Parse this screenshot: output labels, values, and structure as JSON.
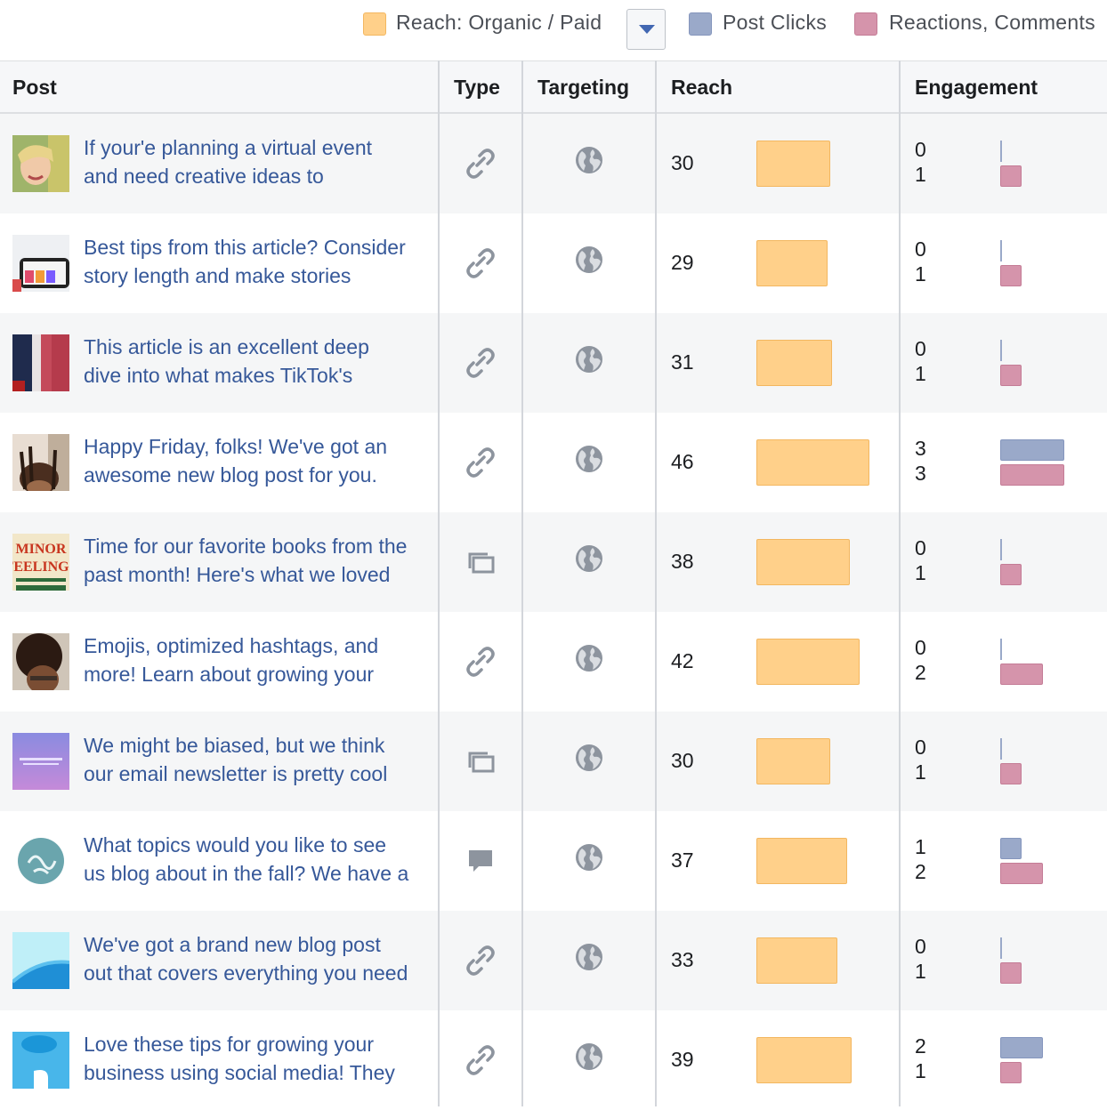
{
  "legend": {
    "reach_label": "Reach: Organic / Paid",
    "clicks_label": "Post Clicks",
    "reactions_label": "Reactions, Comments",
    "reach_color": "#ffd08a",
    "clicks_color": "#9aa9c9",
    "reactions_color": "#d594ab"
  },
  "table": {
    "headers": {
      "post": "Post",
      "type": "Type",
      "targeting": "Targeting",
      "reach": "Reach",
      "engagement": "Engagement"
    },
    "rows": [
      {
        "line1": "If your'e planning a virtual event",
        "line2": "and need creative ideas to",
        "type_icon": "link-icon",
        "targeting_icon": "globe-icon",
        "reach": "30",
        "clicks": "0",
        "reactions": "1",
        "thumb": "woman-smiling"
      },
      {
        "line1": "Best tips from this article? Consider",
        "line2": "story length and make stories",
        "type_icon": "link-icon",
        "targeting_icon": "globe-icon",
        "reach": "29",
        "clicks": "0",
        "reactions": "1",
        "thumb": "phone-stories"
      },
      {
        "line1": "This article is an excellent deep",
        "line2": "dive into what makes TikTok's",
        "type_icon": "link-icon",
        "targeting_icon": "globe-icon",
        "reach": "31",
        "clicks": "0",
        "reactions": "1",
        "thumb": "red-blue-abstract"
      },
      {
        "line1": "Happy Friday, folks! We've got an",
        "line2": "awesome new blog post for you.",
        "type_icon": "link-icon",
        "targeting_icon": "globe-icon",
        "reach": "46",
        "clicks": "3",
        "reactions": "3",
        "thumb": "person-braids"
      },
      {
        "line1": "Time for our favorite books from the",
        "line2": "past month! Here's what we loved",
        "type_icon": "album-icon",
        "targeting_icon": "globe-icon",
        "reach": "38",
        "clicks": "0",
        "reactions": "1",
        "thumb": "book-cover"
      },
      {
        "line1": "Emojis, optimized hashtags, and",
        "line2": "more! Learn about growing your",
        "type_icon": "link-icon",
        "targeting_icon": "globe-icon",
        "reach": "42",
        "clicks": "0",
        "reactions": "2",
        "thumb": "curly-hair-person"
      },
      {
        "line1": "We might be biased, but we think",
        "line2": "our email newsletter is pretty cool",
        "type_icon": "album-icon",
        "targeting_icon": "globe-icon",
        "reach": "30",
        "clicks": "0",
        "reactions": "1",
        "thumb": "purple-newsletter"
      },
      {
        "line1": "What topics would you like to see",
        "line2": "us blog about in the fall? We have a",
        "type_icon": "status-icon",
        "targeting_icon": "globe-icon",
        "reach": "37",
        "clicks": "1",
        "reactions": "2",
        "thumb": "teal-circle-logo"
      },
      {
        "line1": "We've got a brand new blog post",
        "line2": "out that covers everything you need",
        "type_icon": "link-icon",
        "targeting_icon": "globe-icon",
        "reach": "33",
        "clicks": "0",
        "reactions": "1",
        "thumb": "light-blue-wave"
      },
      {
        "line1": "Love these tips for growing your",
        "line2": "business using social media! They",
        "type_icon": "link-icon",
        "targeting_icon": "globe-icon",
        "reach": "39",
        "clicks": "2",
        "reactions": "1",
        "thumb": "salesforce-blue"
      }
    ]
  }
}
